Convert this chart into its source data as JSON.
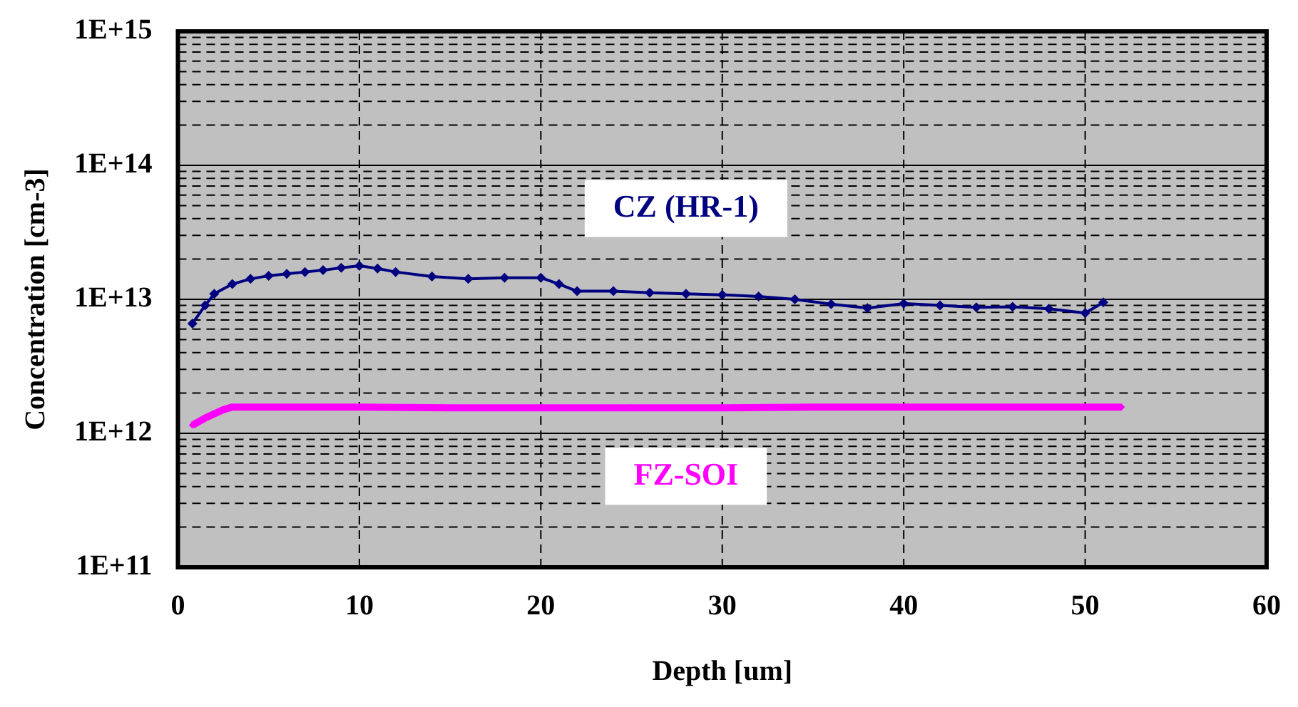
{
  "chart_data": {
    "type": "line",
    "xlabel": "Depth [um]",
    "ylabel": "Concentration [cm-3]",
    "log": "y",
    "grid": true,
    "legend": false,
    "marker": "diamond",
    "xlim": [
      0,
      60
    ],
    "xticks": [
      0,
      10,
      20,
      30,
      40,
      50,
      60
    ],
    "ylim": [
      100000000000.0,
      1000000000000000.0
    ],
    "yticks": [
      {
        "value": 100000000000.0,
        "label": "1E+11"
      },
      {
        "value": 1000000000000.0,
        "label": "1E+12"
      },
      {
        "value": 10000000000000.0,
        "label": "1E+13"
      },
      {
        "value": 100000000000000.0,
        "label": "1E+14"
      },
      {
        "value": 1000000000000000.0,
        "label": "1E+15"
      }
    ],
    "series": [
      {
        "name": "CZ (HR-1)",
        "color": "#000080",
        "x": [
          0.8,
          1.5,
          2,
          3,
          4,
          5,
          6,
          7,
          8,
          9,
          10,
          11,
          12,
          14,
          16,
          18,
          20,
          21,
          22,
          24,
          26,
          28,
          30,
          32,
          34,
          36,
          38,
          40,
          42,
          44,
          46,
          48,
          50,
          51
        ],
        "values": [
          6600000000000.0,
          9000000000000.0,
          11000000000000.0,
          13000000000000.0,
          14200000000000.0,
          15000000000000.0,
          15500000000000.0,
          16000000000000.0,
          16500000000000.0,
          17200000000000.0,
          17800000000000.0,
          17000000000000.0,
          16000000000000.0,
          14800000000000.0,
          14200000000000.0,
          14500000000000.0,
          14500000000000.0,
          13000000000000.0,
          11500000000000.0,
          11500000000000.0,
          11200000000000.0,
          11000000000000.0,
          10800000000000.0,
          10500000000000.0,
          10000000000000.0,
          9200000000000.0,
          8600000000000.0,
          9300000000000.0,
          9000000000000.0,
          8700000000000.0,
          8800000000000.0,
          8500000000000.0,
          7900000000000.0,
          9500000000000.0
        ]
      },
      {
        "name": "FZ-SOI",
        "color": "#ff00ff",
        "x": [
          0.8,
          1.5,
          2.5,
          3,
          5,
          10,
          15,
          20,
          25,
          30,
          35,
          40,
          45,
          50,
          52
        ],
        "values": [
          1150000000000.0,
          1300000000000.0,
          1500000000000.0,
          1570000000000.0,
          1570000000000.0,
          1570000000000.0,
          1550000000000.0,
          1550000000000.0,
          1550000000000.0,
          1550000000000.0,
          1570000000000.0,
          1570000000000.0,
          1570000000000.0,
          1570000000000.0,
          1570000000000.0
        ]
      }
    ]
  }
}
